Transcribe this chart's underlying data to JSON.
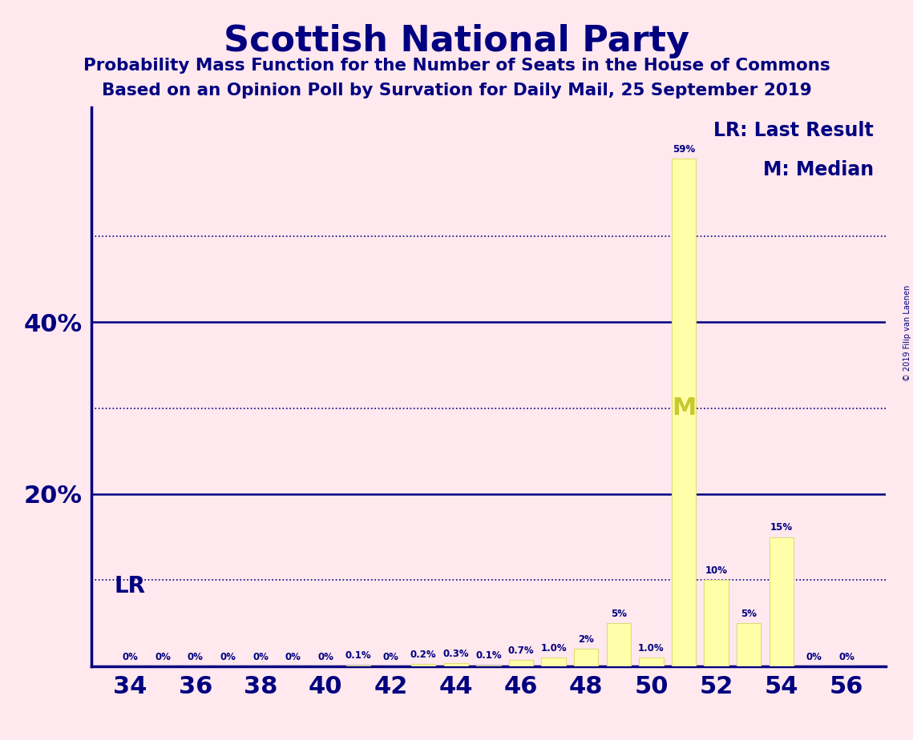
{
  "title": "Scottish National Party",
  "subtitle1": "Probability Mass Function for the Number of Seats in the House of Commons",
  "subtitle2": "Based on an Opinion Poll by Survation for Daily Mail, 25 September 2019",
  "watermark": "© 2019 Filip van Laenen",
  "seats": [
    34,
    35,
    36,
    37,
    38,
    39,
    40,
    41,
    42,
    43,
    44,
    45,
    46,
    47,
    48,
    49,
    50,
    51,
    52,
    53,
    54,
    55,
    56
  ],
  "probabilities": [
    0.0,
    0.0,
    0.0,
    0.0,
    0.0,
    0.0,
    0.0,
    0.1,
    0.0,
    0.2,
    0.3,
    0.1,
    0.7,
    1.0,
    2.0,
    5.0,
    1.0,
    59.0,
    10.0,
    5.0,
    15.0,
    0.0,
    0.0
  ],
  "labels": [
    "0%",
    "0%",
    "0%",
    "0%",
    "0%",
    "0%",
    "0%",
    "0.1%",
    "0%",
    "0.2%",
    "0.3%",
    "0.1%",
    "0.7%",
    "1.0%",
    "2%",
    "5%",
    "1.0%",
    "59%",
    "10%",
    "5%",
    "15%",
    "0%",
    "0%"
  ],
  "bar_color": "#FFFFAA",
  "background_color": "#FFE8EE",
  "text_color": "#000080",
  "axis_color": "#000080",
  "LR_seat": 35,
  "median_seat": 51,
  "legend_lr": "LR: Last Result",
  "legend_m": "M: Median",
  "ylim": [
    0,
    65
  ],
  "solid_yticks": [
    20,
    40
  ],
  "dotted_yticks": [
    10,
    30,
    50
  ],
  "xlabel_seats": [
    34,
    36,
    38,
    40,
    42,
    44,
    46,
    48,
    50,
    52,
    54,
    56
  ]
}
